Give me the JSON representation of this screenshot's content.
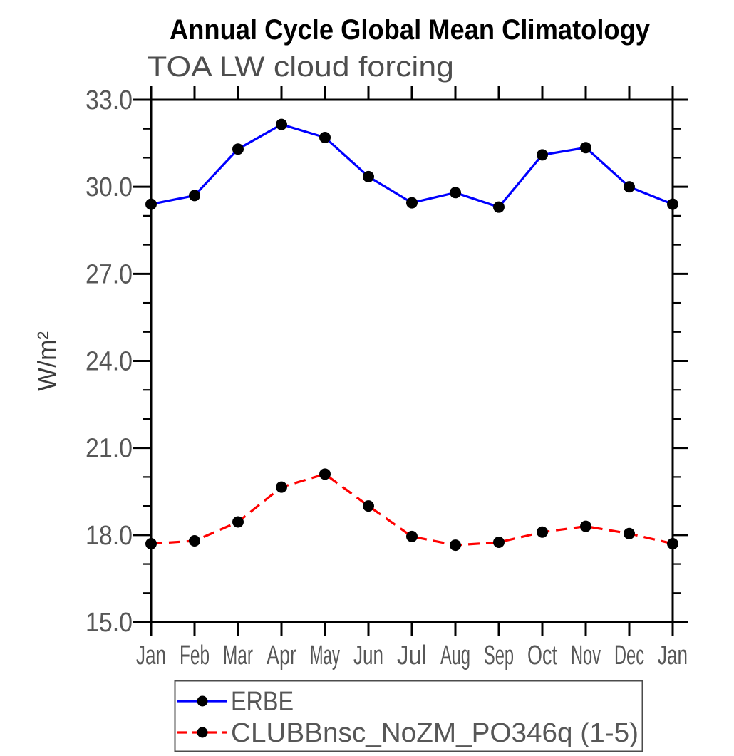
{
  "page": {
    "background": "#ffffff"
  },
  "colors": {
    "axis": "#000000",
    "tick_label": "#575757",
    "title": "#000000",
    "subtitle": "#4e4e4e",
    "legend_border": "#4c4c4c",
    "erbe_line": "#0000ff",
    "clubb_line": "#ff0000",
    "marker": "#000000"
  },
  "chart_data": {
    "type": "line",
    "title": "Annual Cycle Global Mean Climatology",
    "subtitle": "TOA LW cloud forcing",
    "ylabel": "W/m²",
    "xlabel": "",
    "categories": [
      "Jan",
      "Feb",
      "Mar",
      "Apr",
      "May",
      "Jun",
      "Jul",
      "Aug",
      "Sep",
      "Oct",
      "Nov",
      "Dec",
      "Jan"
    ],
    "ylim": [
      15.0,
      33.0
    ],
    "ytick_major_interval": 3.0,
    "ytick_minor_interval": 1.0,
    "ytick_major_labels": [
      "15.0",
      "18.0",
      "21.0",
      "24.0",
      "27.0",
      "30.0",
      "33.0"
    ],
    "grid": false,
    "legend_position": "bottom-left",
    "series": [
      {
        "name": "ERBE",
        "line_color": "#0000ff",
        "line_style": "solid",
        "marker": "filled-circle",
        "marker_color": "#000000",
        "values": [
          29.4,
          29.7,
          31.3,
          32.15,
          31.7,
          30.35,
          29.45,
          29.8,
          29.3,
          31.1,
          31.35,
          30.0,
          29.4
        ]
      },
      {
        "name": "CLUBBnsc_NoZM_PO346q (1-5)",
        "line_color": "#ff0000",
        "line_style": "dashed",
        "marker": "filled-circle",
        "marker_color": "#000000",
        "values": [
          17.7,
          17.8,
          18.45,
          19.65,
          20.1,
          19.0,
          17.95,
          17.65,
          17.75,
          18.1,
          18.3,
          18.05,
          17.7
        ]
      }
    ]
  }
}
